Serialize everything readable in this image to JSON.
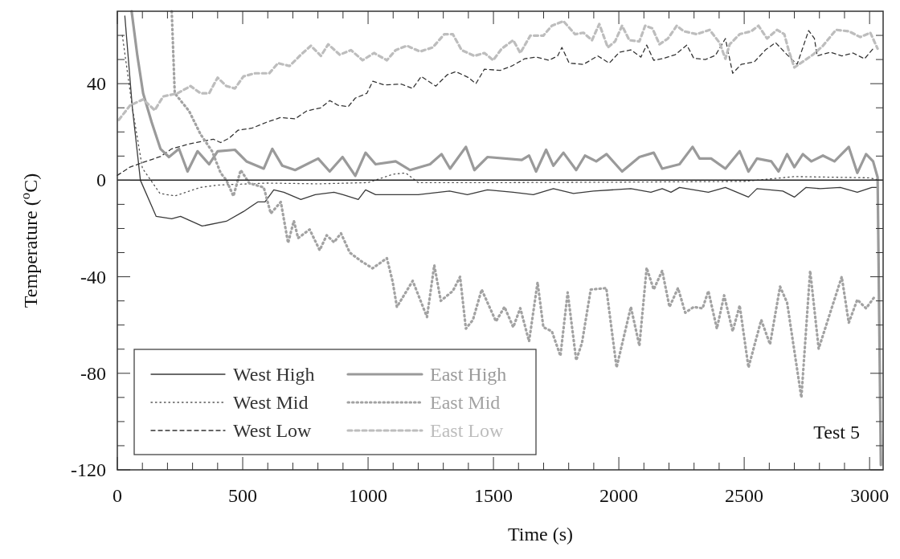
{
  "chart_data": {
    "type": "line",
    "xlabel": "Time (s)",
    "ylabel": "Temperature ($^{o}$C)",
    "xlim": [
      0,
      3054
    ],
    "ylim": [
      -120,
      70
    ],
    "xticks": [
      0,
      {
        "value": 100,
        "label": null
      },
      {
        "value": 200,
        "label": null
      },
      {
        "value": 300,
        "label": null
      },
      {
        "value": 400,
        "label": null
      },
      500,
      {
        "value": 600,
        "label": null
      },
      {
        "value": 700,
        "label": null
      },
      {
        "value": 800,
        "label": null
      },
      {
        "value": 900,
        "label": null
      },
      1000,
      {
        "value": 1100,
        "label": null
      },
      {
        "value": 1200,
        "label": null
      },
      {
        "value": 1300,
        "label": null
      },
      {
        "value": 1400,
        "label": null
      },
      1500,
      {
        "value": 1600,
        "label": null
      },
      {
        "value": 1700,
        "label": null
      },
      {
        "value": 1800,
        "label": null
      },
      {
        "value": 1900,
        "label": null
      },
      2000,
      {
        "value": 2100,
        "label": null
      },
      {
        "value": 2200,
        "label": null
      },
      {
        "value": 2300,
        "label": null
      },
      {
        "value": 2400,
        "label": null
      },
      2500,
      {
        "value": 2600,
        "label": null
      },
      {
        "value": 2700,
        "label": null
      },
      {
        "value": 2800,
        "label": null
      },
      {
        "value": 2900,
        "label": null
      },
      3000
    ],
    "yticks": [
      -120,
      {
        "value": -110,
        "label": null
      },
      {
        "value": -100,
        "label": null
      },
      {
        "value": -90,
        "label": null
      },
      -80,
      {
        "value": -70,
        "label": null
      },
      {
        "value": -60,
        "label": null
      },
      {
        "value": -50,
        "label": null
      },
      -40,
      {
        "value": -30,
        "label": null
      },
      {
        "value": -20,
        "label": null
      },
      {
        "value": -10,
        "label": null
      },
      0,
      {
        "value": 10,
        "label": null
      },
      {
        "value": 20,
        "label": null
      },
      {
        "value": 30,
        "label": null
      },
      40,
      {
        "value": 50,
        "label": null
      },
      {
        "value": 60,
        "label": null
      }
    ],
    "grid": false,
    "legend": "bottom left",
    "ref_lines": [
      {
        "axis": "y",
        "value": 0,
        "color": "#222222"
      }
    ],
    "annotations": [
      "Test 5"
    ],
    "series": [
      {
        "name": "West High",
        "color": "#3a3a3a",
        "line_style": "solid",
        "x": [
          30,
          60,
          92,
          155,
          217,
          252,
          338,
          435,
          503,
          560,
          589,
          624,
          664,
          732,
          789,
          864,
          900,
          961,
          990,
          1030,
          1200,
          1325,
          1396,
          1476,
          1579,
          1659,
          1739,
          1819,
          1899,
          2048,
          2128,
          2173,
          2208,
          2242,
          2357,
          2425,
          2517,
          2551,
          2654,
          2700,
          2746,
          2803,
          2883,
          2951,
          3009,
          3032
        ],
        "values": [
          68,
          30,
          0,
          -15,
          -16,
          -15,
          -19,
          -17,
          -13,
          -9,
          -9,
          -4,
          -5,
          -8,
          -6,
          -5,
          -6,
          -8,
          -4,
          -6,
          -6,
          -4.5,
          -6,
          -4,
          -5,
          -6,
          -3.5,
          -5.5,
          -4.5,
          -3.5,
          -5,
          -3.5,
          -5,
          -3,
          -5,
          -3,
          -7,
          -3.5,
          -4.5,
          -7,
          -3,
          -3.5,
          -3,
          -5,
          -3,
          -3
        ]
      },
      {
        "name": "West Mid",
        "color": "#555555",
        "line_style": "dotted",
        "x": [
          20,
          60,
          100,
          170,
          230,
          330,
          400,
          600,
          800,
          1000,
          1100,
          1150,
          1200,
          1500,
          2000,
          2500,
          2700,
          3000,
          3040
        ],
        "values": [
          60,
          30,
          5,
          -5.5,
          -6.5,
          -3,
          -2,
          -1.2,
          -1.5,
          -1,
          2.5,
          3,
          -1,
          -1,
          -0.8,
          -0.5,
          1.5,
          1,
          0
        ]
      },
      {
        "name": "West Low",
        "color": "#333333",
        "line_style": "dashed",
        "x": [
          0,
          50,
          103,
          172,
          217,
          286,
          383,
          412,
          446,
          481,
          538,
          595,
          652,
          709,
          755,
          812,
          847,
          881,
          921,
          949,
          995,
          1019,
          1064,
          1133,
          1178,
          1212,
          1270,
          1316,
          1350,
          1401,
          1430,
          1464,
          1527,
          1573,
          1624,
          1670,
          1722,
          1756,
          1773,
          1802,
          1859,
          1916,
          1962,
          2002,
          2048,
          2088,
          2111,
          2139,
          2180,
          2225,
          2271,
          2299,
          2345,
          2385,
          2425,
          2454,
          2488,
          2540,
          2585,
          2625,
          2671,
          2711,
          2757,
          2780,
          2791,
          2843,
          2889,
          2934,
          2980,
          3014
        ],
        "values": [
          2,
          5.4,
          7.4,
          9.8,
          13,
          15,
          17,
          15.6,
          17.4,
          20.7,
          21.6,
          24,
          26,
          25.4,
          28.7,
          30,
          33,
          31,
          30.5,
          34,
          36,
          41,
          39.5,
          39.8,
          38,
          43,
          39,
          43.7,
          45,
          42.5,
          40,
          46,
          45.5,
          47.3,
          50.3,
          51,
          49.7,
          51.5,
          55,
          48.5,
          48,
          51.5,
          48.5,
          53,
          54,
          51,
          56,
          49.7,
          50.5,
          52,
          56,
          50.5,
          50,
          51.7,
          58.7,
          44.3,
          48,
          49,
          54,
          57,
          52,
          48,
          62,
          58.7,
          51.5,
          53,
          51.5,
          52.7,
          50.3,
          54.5
        ]
      },
      {
        "name": "East High",
        "color": "#9a9a9a",
        "line_style": "solid",
        "x": [
          57,
          80,
          103,
          137,
          172,
          206,
          246,
          280,
          320,
          366,
          400,
          469,
          515,
          584,
          618,
          658,
          709,
          801,
          847,
          898,
          949,
          990,
          1030,
          1110,
          1167,
          1247,
          1293,
          1327,
          1390,
          1424,
          1476,
          1613,
          1642,
          1670,
          1710,
          1739,
          1779,
          1830,
          1865,
          1910,
          1951,
          2013,
          2082,
          2139,
          2173,
          2242,
          2294,
          2322,
          2368,
          2425,
          2482,
          2517,
          2551,
          2608,
          2637,
          2671,
          2700,
          2734,
          2768,
          2814,
          2860,
          2917,
          2951,
          2986,
          3014,
          3032,
          3045
        ],
        "values": [
          70,
          51.5,
          36,
          24,
          13,
          9.6,
          13,
          3.6,
          12,
          6.6,
          12,
          12.6,
          7.8,
          4.8,
          13,
          6,
          4.2,
          9,
          3.6,
          9.6,
          1.8,
          11.4,
          6.6,
          7.8,
          4.2,
          6.6,
          10.8,
          4.8,
          13.8,
          4.2,
          9.6,
          8.4,
          10.2,
          3.6,
          12.6,
          6,
          11.4,
          4.2,
          10.2,
          7.8,
          10.8,
          3.6,
          9.6,
          11.4,
          4.8,
          6.6,
          13.8,
          9,
          9,
          4.8,
          12,
          3.6,
          9,
          7.8,
          3.6,
          10.8,
          5.4,
          10.8,
          7.8,
          10.2,
          7.8,
          13.8,
          3,
          10.8,
          7.8,
          1.2,
          -118
        ]
      },
      {
        "name": "East Mid",
        "color": "#a2a2a2",
        "line_style": "dotted",
        "x": [
          217,
          229,
          286,
          332,
          378,
          412,
          435,
          463,
          492,
          526,
          584,
          612,
          652,
          681,
          704,
          721,
          767,
          807,
          835,
          864,
          892,
          927,
          972,
          1018,
          1075,
          1098,
          1115,
          1178,
          1235,
          1264,
          1290,
          1338,
          1367,
          1390,
          1418,
          1453,
          1510,
          1544,
          1579,
          1607,
          1642,
          1676,
          1699,
          1733,
          1767,
          1796,
          1830,
          1853,
          1888,
          1950,
          1991,
          2048,
          2082,
          2111,
          2139,
          2173,
          2202,
          2236,
          2265,
          2299,
          2334,
          2357,
          2391,
          2420,
          2454,
          2482,
          2517,
          2568,
          2603,
          2643,
          2671,
          2728,
          2763,
          2797,
          2889,
          2917,
          2951,
          2986,
          3020
        ],
        "values": [
          70,
          36,
          28.7,
          19,
          12,
          3,
          0,
          -6.6,
          4.2,
          -1.2,
          -3,
          -13.8,
          -9,
          -26,
          -16.8,
          -24,
          -20.4,
          -29,
          -22.8,
          -25.7,
          -22,
          -30,
          -33.5,
          -36.5,
          -32.3,
          -42,
          -52.5,
          -41.7,
          -56.7,
          -35.2,
          -50,
          -45.9,
          -40,
          -61.5,
          -57.9,
          -45.3,
          -58.5,
          -52.5,
          -60.9,
          -53,
          -66.8,
          -42.3,
          -60.9,
          -62.6,
          -72.8,
          -46.5,
          -74.6,
          -67.4,
          -45.3,
          -44.7,
          -77.6,
          -52.5,
          -68.6,
          -36.3,
          -45.3,
          -37.5,
          -52.5,
          -44.7,
          -54.9,
          -52.5,
          -53.1,
          -45.9,
          -61.5,
          -47.7,
          -62.6,
          -51.9,
          -77.6,
          -57.9,
          -68,
          -44.1,
          -50.7,
          -90.1,
          -37.5,
          -69.8,
          -40,
          -59.1,
          -49.5,
          -53.1,
          -48.3
        ]
      },
      {
        "name": "East Low",
        "color": "#bdbdbd",
        "line_style": "dashed",
        "x": [
          6,
          51,
          103,
          149,
          183,
          240,
          292,
          332,
          366,
          400,
          435,
          469,
          503,
          549,
          606,
          641,
          687,
          732,
          772,
          812,
          841,
          887,
          932,
          978,
          1024,
          1075,
          1110,
          1155,
          1207,
          1258,
          1304,
          1338,
          1373,
          1424,
          1464,
          1499,
          1533,
          1579,
          1607,
          1647,
          1699,
          1733,
          1779,
          1825,
          1859,
          1893,
          1922,
          1956,
          1985,
          2013,
          2042,
          2082,
          2105,
          2134,
          2162,
          2196,
          2231,
          2259,
          2311,
          2362,
          2402,
          2425,
          2442,
          2482,
          2528,
          2557,
          2591,
          2631,
          2660,
          2677,
          2700,
          2774,
          2814,
          2866,
          2917,
          2963,
          3003,
          3032
        ],
        "values": [
          25,
          31,
          33.5,
          29,
          34.7,
          36,
          39,
          36,
          36,
          42.5,
          39,
          38,
          43,
          44.3,
          44.3,
          48.5,
          47.3,
          52,
          55.7,
          51.5,
          56.3,
          52,
          53.9,
          49.7,
          52.7,
          49.7,
          53.9,
          55.7,
          53.3,
          55,
          60.5,
          60.5,
          53.9,
          51.5,
          52.7,
          49.7,
          54.5,
          58,
          52.7,
          59.9,
          59.9,
          64,
          65.9,
          60.5,
          61.1,
          58,
          64.7,
          55,
          57.5,
          64,
          58,
          57.5,
          64,
          62.9,
          56.3,
          58.7,
          64,
          61.7,
          60.5,
          62.3,
          56.9,
          50.3,
          56.3,
          60.5,
          61.7,
          64,
          58.7,
          62.3,
          60.5,
          53.9,
          46.7,
          52,
          55.7,
          62.3,
          61.7,
          59.3,
          61.1,
          54.5
        ]
      }
    ]
  }
}
